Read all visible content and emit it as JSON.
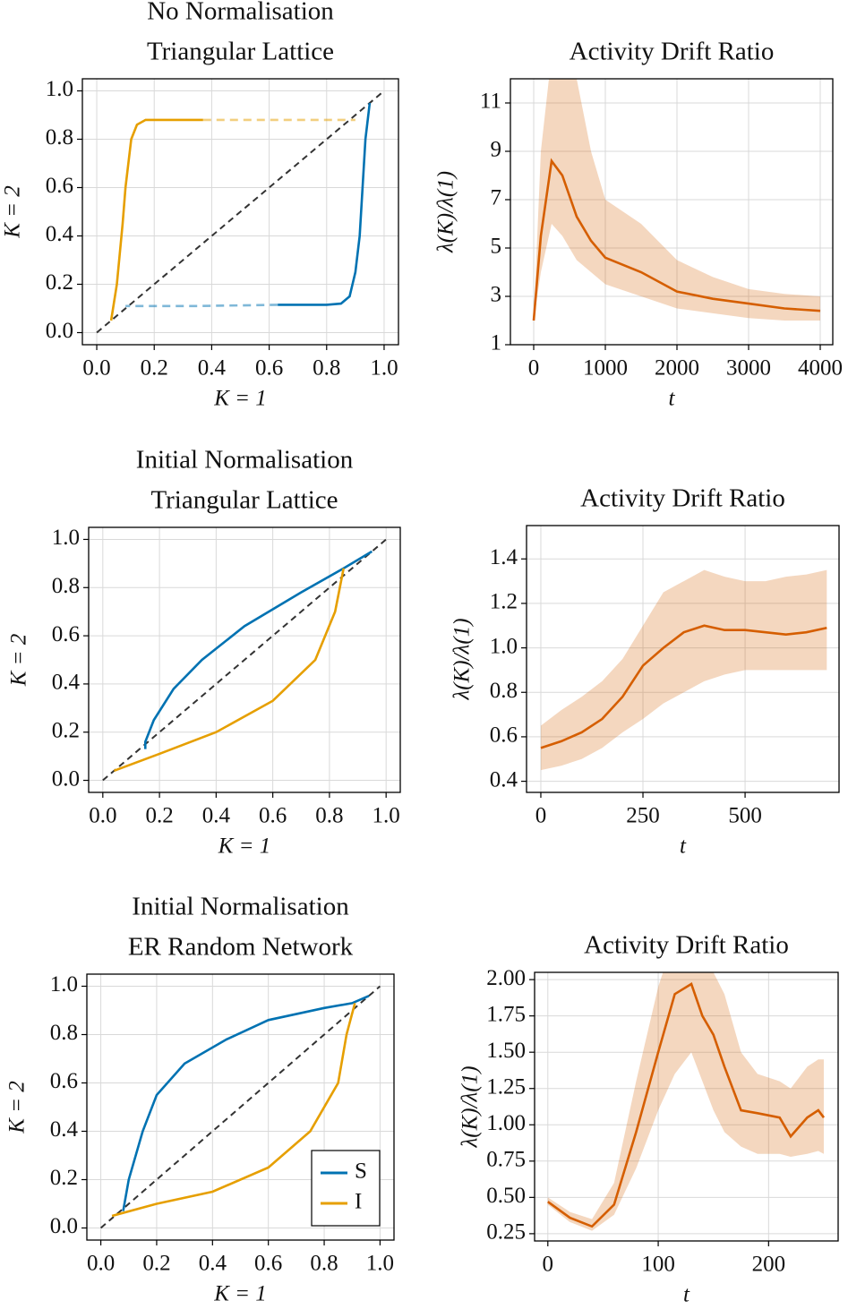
{
  "chart_data": [
    {
      "type": "line",
      "title": [
        "No Normalisation",
        "Triangular Lattice"
      ],
      "xlabel": "K = 1",
      "ylabel": "K = 2",
      "xlim": [
        -0.05,
        1.05
      ],
      "ylim": [
        -0.05,
        1.05
      ],
      "grid": true,
      "diagonal": true,
      "xticks": [
        {
          "value": 0,
          "label": "0.0"
        },
        {
          "value": 0.2,
          "label": "0.2"
        },
        {
          "value": 0.4,
          "label": "0.4"
        },
        {
          "value": 0.6,
          "label": "0.6"
        },
        {
          "value": 0.8,
          "label": "0.8"
        },
        {
          "value": 1,
          "label": "1.0"
        }
      ],
      "yticks": [
        {
          "value": 0,
          "label": "0.0"
        },
        {
          "value": 0.2,
          "label": "0.2"
        },
        {
          "value": 0.4,
          "label": "0.4"
        },
        {
          "value": 0.6,
          "label": "0.6"
        },
        {
          "value": 0.8,
          "label": "0.8"
        },
        {
          "value": 1,
          "label": "1.0"
        }
      ],
      "series": [
        {
          "color": "#e69f00",
          "x": [
            0.05,
            0.07,
            0.09,
            0.1,
            0.12,
            0.14,
            0.17,
            0.22,
            0.3,
            0.37
          ],
          "values": [
            0.05,
            0.2,
            0.45,
            0.6,
            0.8,
            0.86,
            0.88,
            0.88,
            0.88,
            0.88
          ]
        },
        {
          "color": "#e69f00",
          "dashed": true,
          "x": [
            0.37,
            0.6,
            0.9
          ],
          "values": [
            0.88,
            0.88,
            0.88
          ]
        },
        {
          "color": "#0072b2",
          "x": [
            0.95,
            0.935,
            0.925,
            0.915,
            0.9,
            0.88,
            0.85,
            0.8,
            0.7,
            0.63
          ],
          "values": [
            0.95,
            0.8,
            0.6,
            0.4,
            0.25,
            0.15,
            0.12,
            0.115,
            0.115,
            0.115
          ]
        },
        {
          "color": "#0072b2",
          "dashed": true,
          "x": [
            0.63,
            0.35,
            0.1
          ],
          "values": [
            0.115,
            0.11,
            0.11
          ]
        }
      ]
    },
    {
      "type": "line",
      "title": [
        "Activity Drift Ratio"
      ],
      "xlabel": "t",
      "ylabel": "λ(K)/λ(1)",
      "xlim": [
        -325,
        4175
      ],
      "ylim": [
        1,
        12
      ],
      "grid": true,
      "xticks": [
        0,
        1000,
        2000,
        3000,
        4000
      ],
      "yticks": [
        1,
        3,
        5,
        7,
        9,
        11
      ],
      "series": [
        {
          "color": "#d55e00",
          "x": [
            0,
            100,
            250,
            400,
            600,
            800,
            1000,
            1500,
            2000,
            2500,
            3000,
            3500,
            4000
          ],
          "values": [
            2,
            5.5,
            8.6,
            8,
            6.3,
            5.3,
            4.6,
            4,
            3.2,
            2.9,
            2.7,
            2.5,
            2.4
          ],
          "lower": [
            2,
            4,
            6,
            5.5,
            4.5,
            4,
            3.5,
            3,
            2.5,
            2.3,
            2.1,
            2,
            2
          ],
          "upper": [
            2,
            9,
            13,
            13,
            12,
            9,
            7,
            6,
            4.5,
            3.8,
            3.3,
            3.1,
            3
          ]
        }
      ]
    },
    {
      "type": "line",
      "title": [
        "Initial Normalisation",
        "Triangular Lattice"
      ],
      "xlabel": "K = 1",
      "ylabel": "K = 2",
      "xlim": [
        -0.05,
        1.05
      ],
      "ylim": [
        -0.05,
        1.05
      ],
      "grid": true,
      "diagonal": true,
      "xticks": [
        {
          "value": 0,
          "label": "0.0"
        },
        {
          "value": 0.2,
          "label": "0.2"
        },
        {
          "value": 0.4,
          "label": "0.4"
        },
        {
          "value": 0.6,
          "label": "0.6"
        },
        {
          "value": 0.8,
          "label": "0.8"
        },
        {
          "value": 1,
          "label": "1.0"
        }
      ],
      "yticks": [
        {
          "value": 0,
          "label": "0.0"
        },
        {
          "value": 0.2,
          "label": "0.2"
        },
        {
          "value": 0.4,
          "label": "0.4"
        },
        {
          "value": 0.6,
          "label": "0.6"
        },
        {
          "value": 0.8,
          "label": "0.8"
        },
        {
          "value": 1,
          "label": "1.0"
        }
      ],
      "series": [
        {
          "color": "#0072b2",
          "x": [
            0.15,
            0.15,
            0.18,
            0.25,
            0.35,
            0.5,
            0.7,
            0.85,
            0.95
          ],
          "values": [
            0.13,
            0.16,
            0.25,
            0.38,
            0.5,
            0.64,
            0.78,
            0.88,
            0.95
          ]
        },
        {
          "color": "#e69f00",
          "x": [
            0.04,
            0.2,
            0.4,
            0.6,
            0.75,
            0.82,
            0.85
          ],
          "values": [
            0.04,
            0.11,
            0.2,
            0.33,
            0.5,
            0.7,
            0.88
          ]
        }
      ]
    },
    {
      "type": "line",
      "title": [
        "Activity Drift Ratio"
      ],
      "xlabel": "t",
      "ylabel": "λ(K)/λ(1)",
      "xlim": [
        -35,
        730
      ],
      "ylim": [
        0.35,
        1.55
      ],
      "grid": true,
      "xticks": [
        0,
        250,
        500
      ],
      "yticks": [
        0.4,
        0.6,
        0.8,
        {
          "value": 1,
          "label": "1.0"
        },
        1.2,
        1.4
      ],
      "series": [
        {
          "color": "#d55e00",
          "x": [
            0,
            50,
            100,
            150,
            200,
            250,
            300,
            350,
            400,
            450,
            500,
            550,
            600,
            650,
            700
          ],
          "values": [
            0.55,
            0.58,
            0.62,
            0.68,
            0.78,
            0.92,
            1,
            1.07,
            1.1,
            1.08,
            1.08,
            1.07,
            1.06,
            1.07,
            1.09
          ],
          "lower": [
            0.45,
            0.47,
            0.5,
            0.55,
            0.62,
            0.68,
            0.75,
            0.8,
            0.85,
            0.88,
            0.9,
            0.9,
            0.9,
            0.9,
            0.9
          ],
          "upper": [
            0.65,
            0.72,
            0.78,
            0.85,
            0.95,
            1.1,
            1.25,
            1.3,
            1.35,
            1.32,
            1.3,
            1.3,
            1.32,
            1.33,
            1.35
          ]
        }
      ]
    },
    {
      "type": "line",
      "title": [
        "Initial Normalisation",
        "ER Random Network"
      ],
      "xlabel": "K = 1",
      "ylabel": "K = 2",
      "xlim": [
        -0.05,
        1.05
      ],
      "ylim": [
        -0.05,
        1.05
      ],
      "grid": true,
      "diagonal": true,
      "legend": "lower right",
      "xticks": [
        {
          "value": 0,
          "label": "0.0"
        },
        {
          "value": 0.2,
          "label": "0.2"
        },
        {
          "value": 0.4,
          "label": "0.4"
        },
        {
          "value": 0.6,
          "label": "0.6"
        },
        {
          "value": 0.8,
          "label": "0.8"
        },
        {
          "value": 1,
          "label": "1.0"
        }
      ],
      "yticks": [
        {
          "value": 0,
          "label": "0.0"
        },
        {
          "value": 0.2,
          "label": "0.2"
        },
        {
          "value": 0.4,
          "label": "0.4"
        },
        {
          "value": 0.6,
          "label": "0.6"
        },
        {
          "value": 0.8,
          "label": "0.8"
        },
        {
          "value": 1,
          "label": "1.0"
        }
      ],
      "series": [
        {
          "name": "S",
          "color": "#0072b2",
          "x": [
            0.08,
            0.1,
            0.15,
            0.2,
            0.3,
            0.45,
            0.6,
            0.8,
            0.9,
            0.96
          ],
          "values": [
            0.07,
            0.2,
            0.4,
            0.55,
            0.68,
            0.78,
            0.86,
            0.91,
            0.93,
            0.96
          ]
        },
        {
          "name": "I",
          "color": "#e69f00",
          "x": [
            0.04,
            0.2,
            0.4,
            0.6,
            0.75,
            0.85,
            0.88,
            0.91
          ],
          "values": [
            0.05,
            0.1,
            0.15,
            0.25,
            0.4,
            0.6,
            0.8,
            0.93
          ]
        }
      ]
    },
    {
      "type": "line",
      "title": [
        "Activity Drift Ratio"
      ],
      "xlabel": "t",
      "ylabel": "λ(K)/λ(1)",
      "xlim": [
        -12,
        263
      ],
      "ylim": [
        0.2,
        2.05
      ],
      "grid": true,
      "xticks": [
        0,
        100,
        200
      ],
      "yticks": [
        {
          "value": 0.25,
          "label": "0.25"
        },
        {
          "value": 0.5,
          "label": "0.50"
        },
        {
          "value": 0.75,
          "label": "0.75"
        },
        {
          "value": 1,
          "label": "1.00"
        },
        {
          "value": 1.25,
          "label": "1.25"
        },
        {
          "value": 1.5,
          "label": "1.50"
        },
        {
          "value": 1.75,
          "label": "1.75"
        },
        {
          "value": 2,
          "label": "2.00"
        }
      ],
      "series": [
        {
          "color": "#d55e00",
          "x": [
            0,
            20,
            40,
            60,
            80,
            100,
            115,
            130,
            140,
            150,
            160,
            175,
            190,
            210,
            220,
            235,
            245,
            250
          ],
          "values": [
            0.47,
            0.36,
            0.3,
            0.45,
            0.95,
            1.5,
            1.9,
            1.97,
            1.75,
            1.62,
            1.4,
            1.1,
            1.08,
            1.05,
            0.92,
            1.05,
            1.1,
            1.05
          ],
          "lower": [
            0.45,
            0.33,
            0.27,
            0.38,
            0.7,
            1.1,
            1.35,
            1.5,
            1.3,
            1.1,
            0.95,
            0.85,
            0.8,
            0.8,
            0.78,
            0.8,
            0.82,
            0.8
          ],
          "upper": [
            0.5,
            0.4,
            0.35,
            0.6,
            1.3,
            1.95,
            2.3,
            2.4,
            2.2,
            2.05,
            1.9,
            1.5,
            1.35,
            1.3,
            1.25,
            1.4,
            1.45,
            1.45
          ]
        }
      ]
    }
  ]
}
